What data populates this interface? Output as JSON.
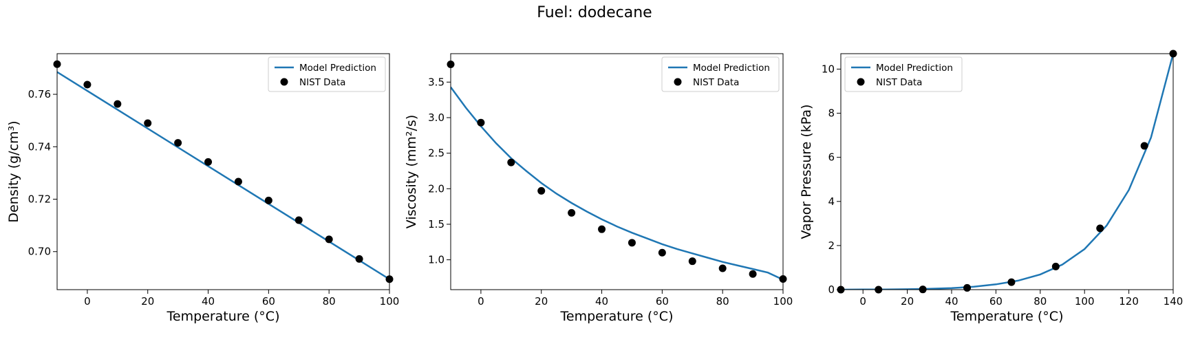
{
  "suptitle": "Fuel: dodecane",
  "chart_data": [
    {
      "type": "line",
      "title": "",
      "xlabel": "Temperature (°C)",
      "ylabel": "Density (g/cm³)",
      "xlim": [
        -10,
        100
      ],
      "ylim": [
        0.6855,
        0.7755
      ],
      "xticks": [
        0,
        20,
        40,
        60,
        80,
        100
      ],
      "yticks": [
        0.7,
        0.72,
        0.74,
        0.76
      ],
      "ytick_labels": [
        "0.70",
        "0.72",
        "0.74",
        "0.76"
      ],
      "legend": {
        "placement": "top-right",
        "entries": [
          "Model Prediction",
          "NIST Data"
        ]
      },
      "grid": false,
      "series": [
        {
          "name": "Model Prediction",
          "kind": "line",
          "color": "#1f77b4",
          "x": [
            -10,
            100
          ],
          "y": [
            0.7685,
            0.6895
          ]
        },
        {
          "name": "NIST Data",
          "kind": "scatter",
          "color": "#000000",
          "x": [
            -10,
            0,
            10,
            20,
            30,
            40,
            50,
            60,
            70,
            80,
            90,
            100
          ],
          "y": [
            0.7715,
            0.7637,
            0.7563,
            0.749,
            0.7415,
            0.7342,
            0.7267,
            0.7195,
            0.712,
            0.7047,
            0.6972,
            0.6895
          ]
        }
      ]
    },
    {
      "type": "line",
      "title": "",
      "xlabel": "Temperature (°C)",
      "ylabel": "Viscosity (mm²/s)",
      "xlim": [
        -10,
        100
      ],
      "ylim": [
        0.58,
        3.9
      ],
      "xticks": [
        0,
        20,
        40,
        60,
        80,
        100
      ],
      "yticks": [
        1.0,
        1.5,
        2.0,
        2.5,
        3.0,
        3.5
      ],
      "ytick_labels": [
        "1.0",
        "1.5",
        "2.0",
        "2.5",
        "3.0",
        "3.5"
      ],
      "legend": {
        "placement": "top-right",
        "entries": [
          "Model Prediction",
          "NIST Data"
        ]
      },
      "grid": false,
      "series": [
        {
          "name": "Model Prediction",
          "kind": "line",
          "color": "#1f77b4",
          "x": [
            -10,
            -5,
            0,
            5,
            10,
            15,
            20,
            25,
            30,
            35,
            40,
            45,
            50,
            55,
            60,
            65,
            70,
            75,
            80,
            85,
            90,
            95,
            100
          ],
          "y": [
            3.43,
            3.14,
            2.88,
            2.64,
            2.43,
            2.25,
            2.08,
            1.93,
            1.8,
            1.68,
            1.57,
            1.47,
            1.38,
            1.3,
            1.22,
            1.15,
            1.09,
            1.03,
            0.97,
            0.92,
            0.87,
            0.82,
            0.72
          ]
        },
        {
          "name": "NIST Data",
          "kind": "scatter",
          "color": "#000000",
          "x": [
            -10,
            0,
            10,
            20,
            30,
            40,
            50,
            60,
            70,
            80,
            90,
            100
          ],
          "y": [
            3.75,
            2.93,
            2.37,
            1.97,
            1.66,
            1.43,
            1.24,
            1.1,
            0.98,
            0.88,
            0.8,
            0.73
          ]
        }
      ]
    },
    {
      "type": "line",
      "title": "",
      "xlabel": "Temperature (°C)",
      "ylabel": "Vapor Pressure (kPa)",
      "xlim": [
        -10,
        140
      ],
      "ylim": [
        0,
        10.7
      ],
      "xticks": [
        0,
        20,
        40,
        60,
        80,
        100,
        120,
        140
      ],
      "yticks": [
        0,
        2,
        4,
        6,
        8,
        10
      ],
      "ytick_labels": [
        "0",
        "2",
        "4",
        "6",
        "8",
        "10"
      ],
      "legend": {
        "placement": "top-left",
        "entries": [
          "Model Prediction",
          "NIST Data"
        ]
      },
      "grid": false,
      "series": [
        {
          "name": "Model Prediction",
          "kind": "line",
          "color": "#1f77b4",
          "x": [
            -10,
            0,
            10,
            20,
            30,
            40,
            50,
            60,
            70,
            80,
            90,
            100,
            110,
            120,
            130,
            140
          ],
          "y": [
            0.0,
            0.01,
            0.01,
            0.02,
            0.04,
            0.07,
            0.13,
            0.24,
            0.41,
            0.69,
            1.14,
            1.84,
            2.91,
            4.52,
            6.9,
            10.7
          ]
        },
        {
          "name": "NIST Data",
          "kind": "scatter",
          "color": "#000000",
          "x": [
            -10,
            7,
            27,
            47,
            67,
            87,
            107,
            127,
            140
          ],
          "y": [
            0.0,
            0.0,
            0.01,
            0.08,
            0.34,
            1.05,
            2.78,
            6.52,
            10.7
          ]
        }
      ]
    }
  ]
}
